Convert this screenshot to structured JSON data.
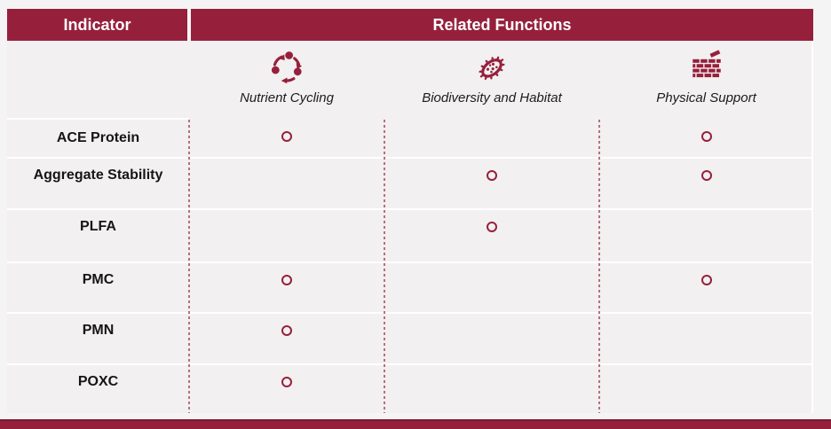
{
  "header": {
    "indicator_label": "Indicator",
    "related_functions_label": "Related Functions"
  },
  "functions": [
    {
      "label": "Nutrient Cycling",
      "icon": "nutrient-cycling-icon"
    },
    {
      "label": "Biodiversity and Habitat",
      "icon": "microbe-icon"
    },
    {
      "label": "Physical Support",
      "icon": "brick-wall-icon"
    }
  ],
  "rows": [
    {
      "indicator": "ACE Protein",
      "related": [
        true,
        false,
        true
      ]
    },
    {
      "indicator": "Aggregate Stability",
      "related": [
        false,
        true,
        true
      ]
    },
    {
      "indicator": "PLFA",
      "related": [
        false,
        true,
        false
      ]
    },
    {
      "indicator": "PMC",
      "related": [
        true,
        false,
        true
      ]
    },
    {
      "indicator": "PMN",
      "related": [
        true,
        false,
        false
      ]
    },
    {
      "indicator": "POXC",
      "related": [
        true,
        false,
        false
      ]
    }
  ],
  "marker": {
    "shape": "ring",
    "color": "#96203C"
  },
  "colors": {
    "maroon": "#96203C",
    "body_background": "#f2f0f0",
    "page_background": "#f5f4f4",
    "dashed_separator": "#b6707d",
    "header_text": "#ffffff",
    "body_text": "#151515"
  }
}
